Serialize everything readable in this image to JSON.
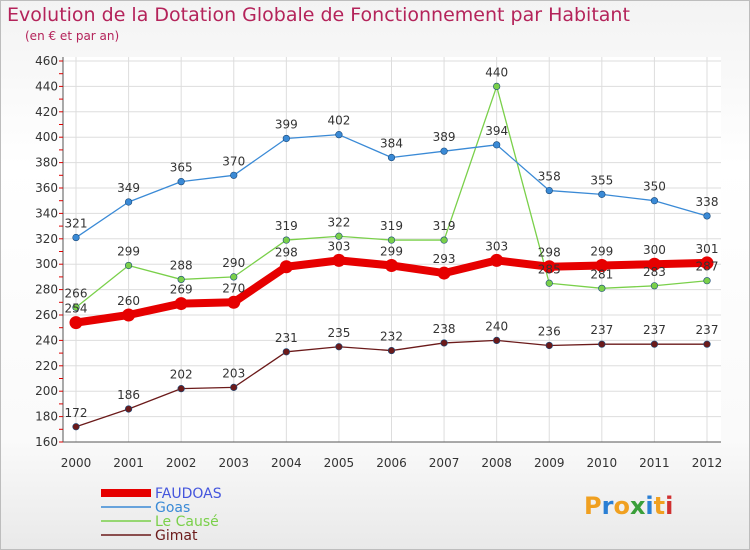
{
  "title": "Evolution de la Dotation Globale de Fonctionnement par Habitant",
  "subtitle": "(en € et par an)",
  "logo": {
    "letters": [
      "P",
      "r",
      "o",
      "x",
      "i",
      "t",
      "i"
    ],
    "colors": [
      "#f0a020",
      "#2a7fd4",
      "#f0a020",
      "#3a9f3a",
      "#2a7fd4",
      "#f0a020",
      "#d03030"
    ]
  },
  "chart_data": {
    "type": "line",
    "x": [
      "2000",
      "2001",
      "2002",
      "2003",
      "2004",
      "2005",
      "2006",
      "2007",
      "2008",
      "2009",
      "2010",
      "2011",
      "2012"
    ],
    "ylim": [
      160,
      460
    ],
    "yticks": [
      160,
      180,
      200,
      220,
      240,
      260,
      280,
      300,
      320,
      340,
      360,
      380,
      400,
      420,
      440,
      460
    ],
    "grid": true,
    "legend_position": "bottom-left",
    "series": [
      {
        "name": "FAUDOAS",
        "color": "#e60000",
        "labelColor": "#4455dd",
        "values": [
          254,
          260,
          269,
          270,
          298,
          303,
          299,
          293,
          303,
          298,
          299,
          300,
          301
        ]
      },
      {
        "name": "Goas",
        "color": "#3a8ad6",
        "labelColor": "#3a8ad6",
        "values": [
          321,
          349,
          365,
          370,
          399,
          402,
          384,
          389,
          394,
          358,
          355,
          350,
          338
        ]
      },
      {
        "name": "Le Causé",
        "color": "#7ad04a",
        "labelColor": "#7ad04a",
        "values": [
          266,
          299,
          288,
          290,
          319,
          322,
          319,
          319,
          440,
          285,
          281,
          283,
          287
        ]
      },
      {
        "name": "Gimat",
        "color": "#6b1a1a",
        "labelColor": "#6b1a1a",
        "values": [
          172,
          186,
          202,
          203,
          231,
          235,
          232,
          238,
          240,
          236,
          237,
          237,
          237
        ]
      }
    ]
  }
}
